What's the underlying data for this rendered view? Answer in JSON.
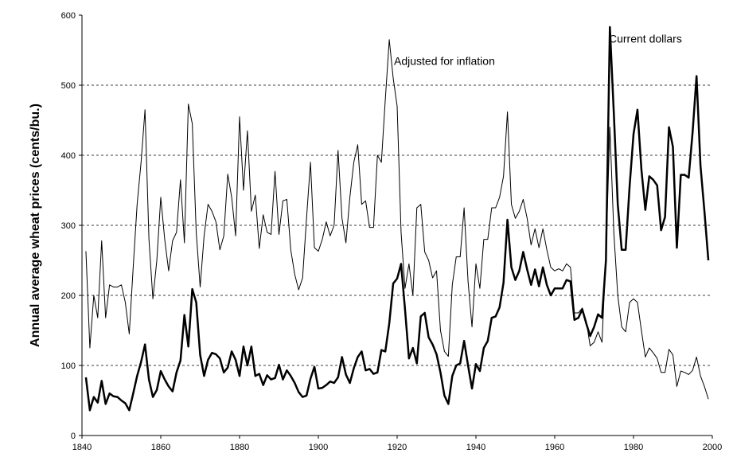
{
  "chart_data": {
    "type": "line",
    "y_label": "Annual average wheat prices (cents/bu.)",
    "annotations": [
      "Adjusted for inflation",
      "Current dollars"
    ],
    "x": [
      1841,
      1842,
      1843,
      1844,
      1845,
      1846,
      1847,
      1848,
      1849,
      1850,
      1851,
      1852,
      1853,
      1854,
      1855,
      1856,
      1857,
      1858,
      1859,
      1860,
      1861,
      1862,
      1863,
      1864,
      1865,
      1866,
      1867,
      1868,
      1869,
      1870,
      1871,
      1872,
      1873,
      1874,
      1875,
      1876,
      1877,
      1878,
      1879,
      1880,
      1881,
      1882,
      1883,
      1884,
      1885,
      1886,
      1887,
      1888,
      1889,
      1890,
      1891,
      1892,
      1893,
      1894,
      1895,
      1896,
      1897,
      1898,
      1899,
      1900,
      1901,
      1902,
      1903,
      1904,
      1905,
      1906,
      1907,
      1908,
      1909,
      1910,
      1911,
      1912,
      1913,
      1914,
      1915,
      1916,
      1917,
      1918,
      1919,
      1920,
      1921,
      1922,
      1923,
      1924,
      1925,
      1926,
      1927,
      1928,
      1929,
      1930,
      1931,
      1932,
      1933,
      1934,
      1935,
      1936,
      1937,
      1938,
      1939,
      1940,
      1941,
      1942,
      1943,
      1944,
      1945,
      1946,
      1947,
      1948,
      1949,
      1950,
      1951,
      1952,
      1953,
      1954,
      1955,
      1956,
      1957,
      1958,
      1959,
      1960,
      1961,
      1962,
      1963,
      1964,
      1965,
      1966,
      1967,
      1968,
      1969,
      1970,
      1971,
      1972,
      1973,
      1974,
      1975,
      1976,
      1977,
      1978,
      1979,
      1980,
      1981,
      1982,
      1983,
      1984,
      1985,
      1986,
      1987,
      1988,
      1989,
      1990,
      1991,
      1992,
      1993,
      1994,
      1995,
      1996,
      1997,
      1998,
      1999
    ],
    "series": [
      {
        "name": "Adjusted for inflation",
        "color": "#000000",
        "width": 1,
        "values": [
          263,
          125,
          200,
          168,
          278,
          168,
          215,
          212,
          212,
          215,
          190,
          145,
          240,
          330,
          390,
          465,
          280,
          195,
          250,
          340,
          280,
          235,
          278,
          290,
          365,
          275,
          473,
          445,
          290,
          212,
          285,
          330,
          320,
          305,
          265,
          285,
          373,
          340,
          285,
          455,
          350,
          435,
          320,
          343,
          267,
          315,
          290,
          287,
          377,
          287,
          335,
          337,
          265,
          230,
          208,
          225,
          310,
          390,
          268,
          263,
          280,
          305,
          285,
          300,
          407,
          310,
          275,
          340,
          390,
          415,
          330,
          335,
          297,
          297,
          400,
          390,
          480,
          565,
          510,
          470,
          290,
          210,
          245,
          200,
          325,
          330,
          262,
          250,
          225,
          235,
          150,
          120,
          113,
          215,
          255,
          255,
          325,
          220,
          155,
          245,
          210,
          280,
          280,
          325,
          325,
          340,
          370,
          462,
          330,
          310,
          320,
          337,
          310,
          272,
          295,
          268,
          295,
          265,
          240,
          235,
          238,
          235,
          245,
          240,
          175,
          175,
          182,
          163,
          128,
          133,
          148,
          133,
          258,
          440,
          290,
          200,
          155,
          148,
          190,
          195,
          190,
          150,
          112,
          125,
          118,
          110,
          90,
          90,
          123,
          115,
          70,
          92,
          90,
          87,
          93,
          112,
          85,
          70,
          52
        ]
      },
      {
        "name": "Current dollars",
        "color": "#000000",
        "width": 2.5,
        "values": [
          83,
          36,
          55,
          47,
          78,
          45,
          60,
          56,
          55,
          50,
          46,
          36,
          60,
          85,
          105,
          130,
          80,
          55,
          65,
          92,
          80,
          70,
          63,
          90,
          107,
          172,
          127,
          209,
          190,
          115,
          85,
          108,
          118,
          116,
          110,
          90,
          97,
          120,
          108,
          85,
          127,
          100,
          127,
          85,
          88,
          72,
          86,
          80,
          82,
          101,
          80,
          93,
          85,
          75,
          62,
          55,
          57,
          81,
          98,
          67,
          68,
          72,
          77,
          75,
          83,
          112,
          87,
          75,
          96,
          112,
          120,
          93,
          95,
          88,
          90,
          122,
          120,
          160,
          217,
          224,
          245,
          180,
          110,
          125,
          103,
          170,
          175,
          140,
          130,
          116,
          90,
          57,
          45,
          85,
          100,
          103,
          135,
          100,
          67,
          102,
          92,
          125,
          135,
          168,
          170,
          183,
          218,
          308,
          240,
          222,
          235,
          262,
          237,
          215,
          237,
          213,
          240,
          215,
          200,
          210,
          210,
          210,
          222,
          220,
          165,
          168,
          180,
          160,
          142,
          155,
          173,
          168,
          250,
          583,
          460,
          330,
          265,
          265,
          355,
          430,
          465,
          380,
          322,
          370,
          365,
          357,
          293,
          312,
          440,
          412,
          268,
          372,
          372,
          368,
          433,
          513,
          385,
          320,
          250
        ]
      }
    ],
    "xlim": [
      1840,
      2000
    ],
    "xticks": [
      1840,
      1860,
      1880,
      1900,
      1920,
      1940,
      1960,
      1980,
      2000
    ],
    "ylim": [
      0,
      600
    ],
    "yticks": [
      0,
      100,
      200,
      300,
      400,
      500,
      600
    ],
    "grid": true
  }
}
